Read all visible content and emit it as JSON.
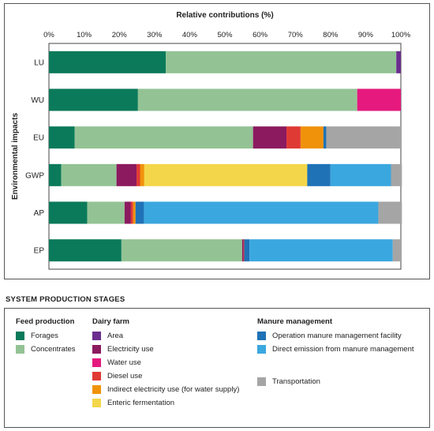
{
  "chart_data": {
    "type": "bar",
    "orientation": "horizontal",
    "stacked": true,
    "title": "Relative contributions (%)",
    "ylabel": "Environmental impacts",
    "xlim": [
      0,
      100
    ],
    "xticks": [
      "0%",
      "10%",
      "20%",
      "30%",
      "40%",
      "50%",
      "60%",
      "70%",
      "80%",
      "90%",
      "100%"
    ],
    "categories": [
      "LU",
      "WU",
      "EU",
      "GWP",
      "AP",
      "EP"
    ],
    "series": [
      {
        "name": "Forages",
        "color": "#0b7a5a",
        "values": [
          33.2,
          25.3,
          7.3,
          3.5,
          10.9,
          20.6
        ]
      },
      {
        "name": "Concentrates",
        "color": "#93c394",
        "values": [
          65.5,
          62.3,
          50.7,
          15.7,
          10.6,
          34.3
        ]
      },
      {
        "name": "Area",
        "color": "#6b2d8e",
        "values": [
          1.3,
          0,
          0,
          0,
          0,
          0
        ]
      },
      {
        "name": "Electricity use",
        "color": "#8b1a5f",
        "values": [
          0,
          0,
          9.5,
          5.7,
          1.8,
          0.4
        ]
      },
      {
        "name": "Water use",
        "color": "#e5197e",
        "values": [
          0,
          12.4,
          0,
          0,
          0,
          0
        ]
      },
      {
        "name": "Diesel use",
        "color": "#e03a35",
        "values": [
          0,
          0,
          4.0,
          1.0,
          0.6,
          0.2
        ]
      },
      {
        "name": "Indirect electricity use (for water supply)",
        "color": "#f0920a",
        "values": [
          0,
          0,
          6.5,
          1.2,
          0.7,
          0
        ]
      },
      {
        "name": "Enteric fermentation",
        "color": "#f3d64a",
        "values": [
          0,
          0,
          0,
          46.3,
          0,
          0
        ]
      },
      {
        "name": "Operation manure management facility",
        "color": "#1f72b6",
        "values": [
          0,
          0,
          0.8,
          6.6,
          2.4,
          1.5
        ]
      },
      {
        "name": "Direct emission from manure management",
        "color": "#3ba7df",
        "values": [
          0,
          0,
          0,
          17.2,
          66.6,
          40.7
        ]
      },
      {
        "name": "Transportation",
        "color": "#a5a5a5",
        "values": [
          0,
          0,
          21.2,
          3.1,
          6.7,
          2.3
        ]
      }
    ]
  },
  "legend": {
    "heading": "SYSTEM PRODUCTION STAGES",
    "groups": [
      {
        "title": "Feed production",
        "items": [
          {
            "label": "Forages",
            "color": "#0b7a5a"
          },
          {
            "label": "Concentrates",
            "color": "#93c394"
          }
        ]
      },
      {
        "title": "Dairy farm",
        "items": [
          {
            "label": "Area",
            "color": "#6b2d8e"
          },
          {
            "label": "Electricity use",
            "color": "#8b1a5f"
          },
          {
            "label": "Water use",
            "color": "#e5197e"
          },
          {
            "label": "Diesel use",
            "color": "#e03a35"
          },
          {
            "label": "Indirect electricity use (for water supply)",
            "color": "#f0920a"
          },
          {
            "label": "Enteric fermentation",
            "color": "#f3d64a"
          }
        ]
      },
      {
        "title": "Manure management",
        "items": [
          {
            "label": "Operation manure management facility",
            "color": "#1f72b6"
          },
          {
            "label": "Direct emission from manure management",
            "color": "#3ba7df"
          }
        ]
      },
      {
        "title": "",
        "items": [
          {
            "label": "Transportation",
            "color": "#a5a5a5"
          }
        ]
      }
    ]
  }
}
